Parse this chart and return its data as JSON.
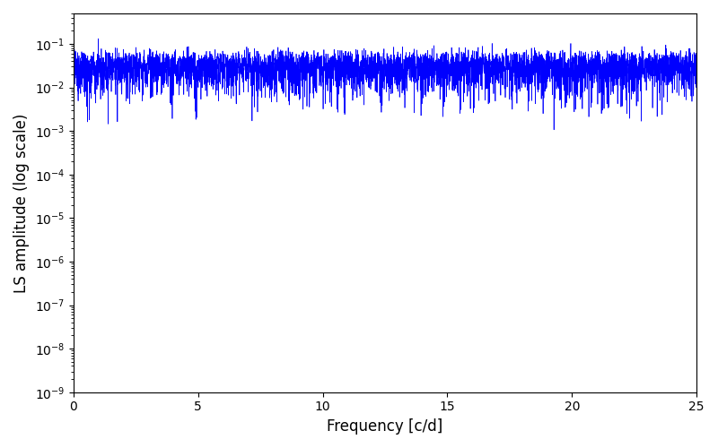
{
  "xlabel": "Frequency [c/d]",
  "ylabel": "LS amplitude (log scale)",
  "line_color": "#0000FF",
  "xlim": [
    0,
    25
  ],
  "ylim": [
    1e-09,
    0.5
  ],
  "figsize": [
    8.0,
    5.0
  ],
  "dpi": 100,
  "bg_color": "#FFFFFF",
  "seed": 12345,
  "n_obs": 500,
  "freq_max": 25.0,
  "n_freq": 5000,
  "linewidth": 0.5
}
